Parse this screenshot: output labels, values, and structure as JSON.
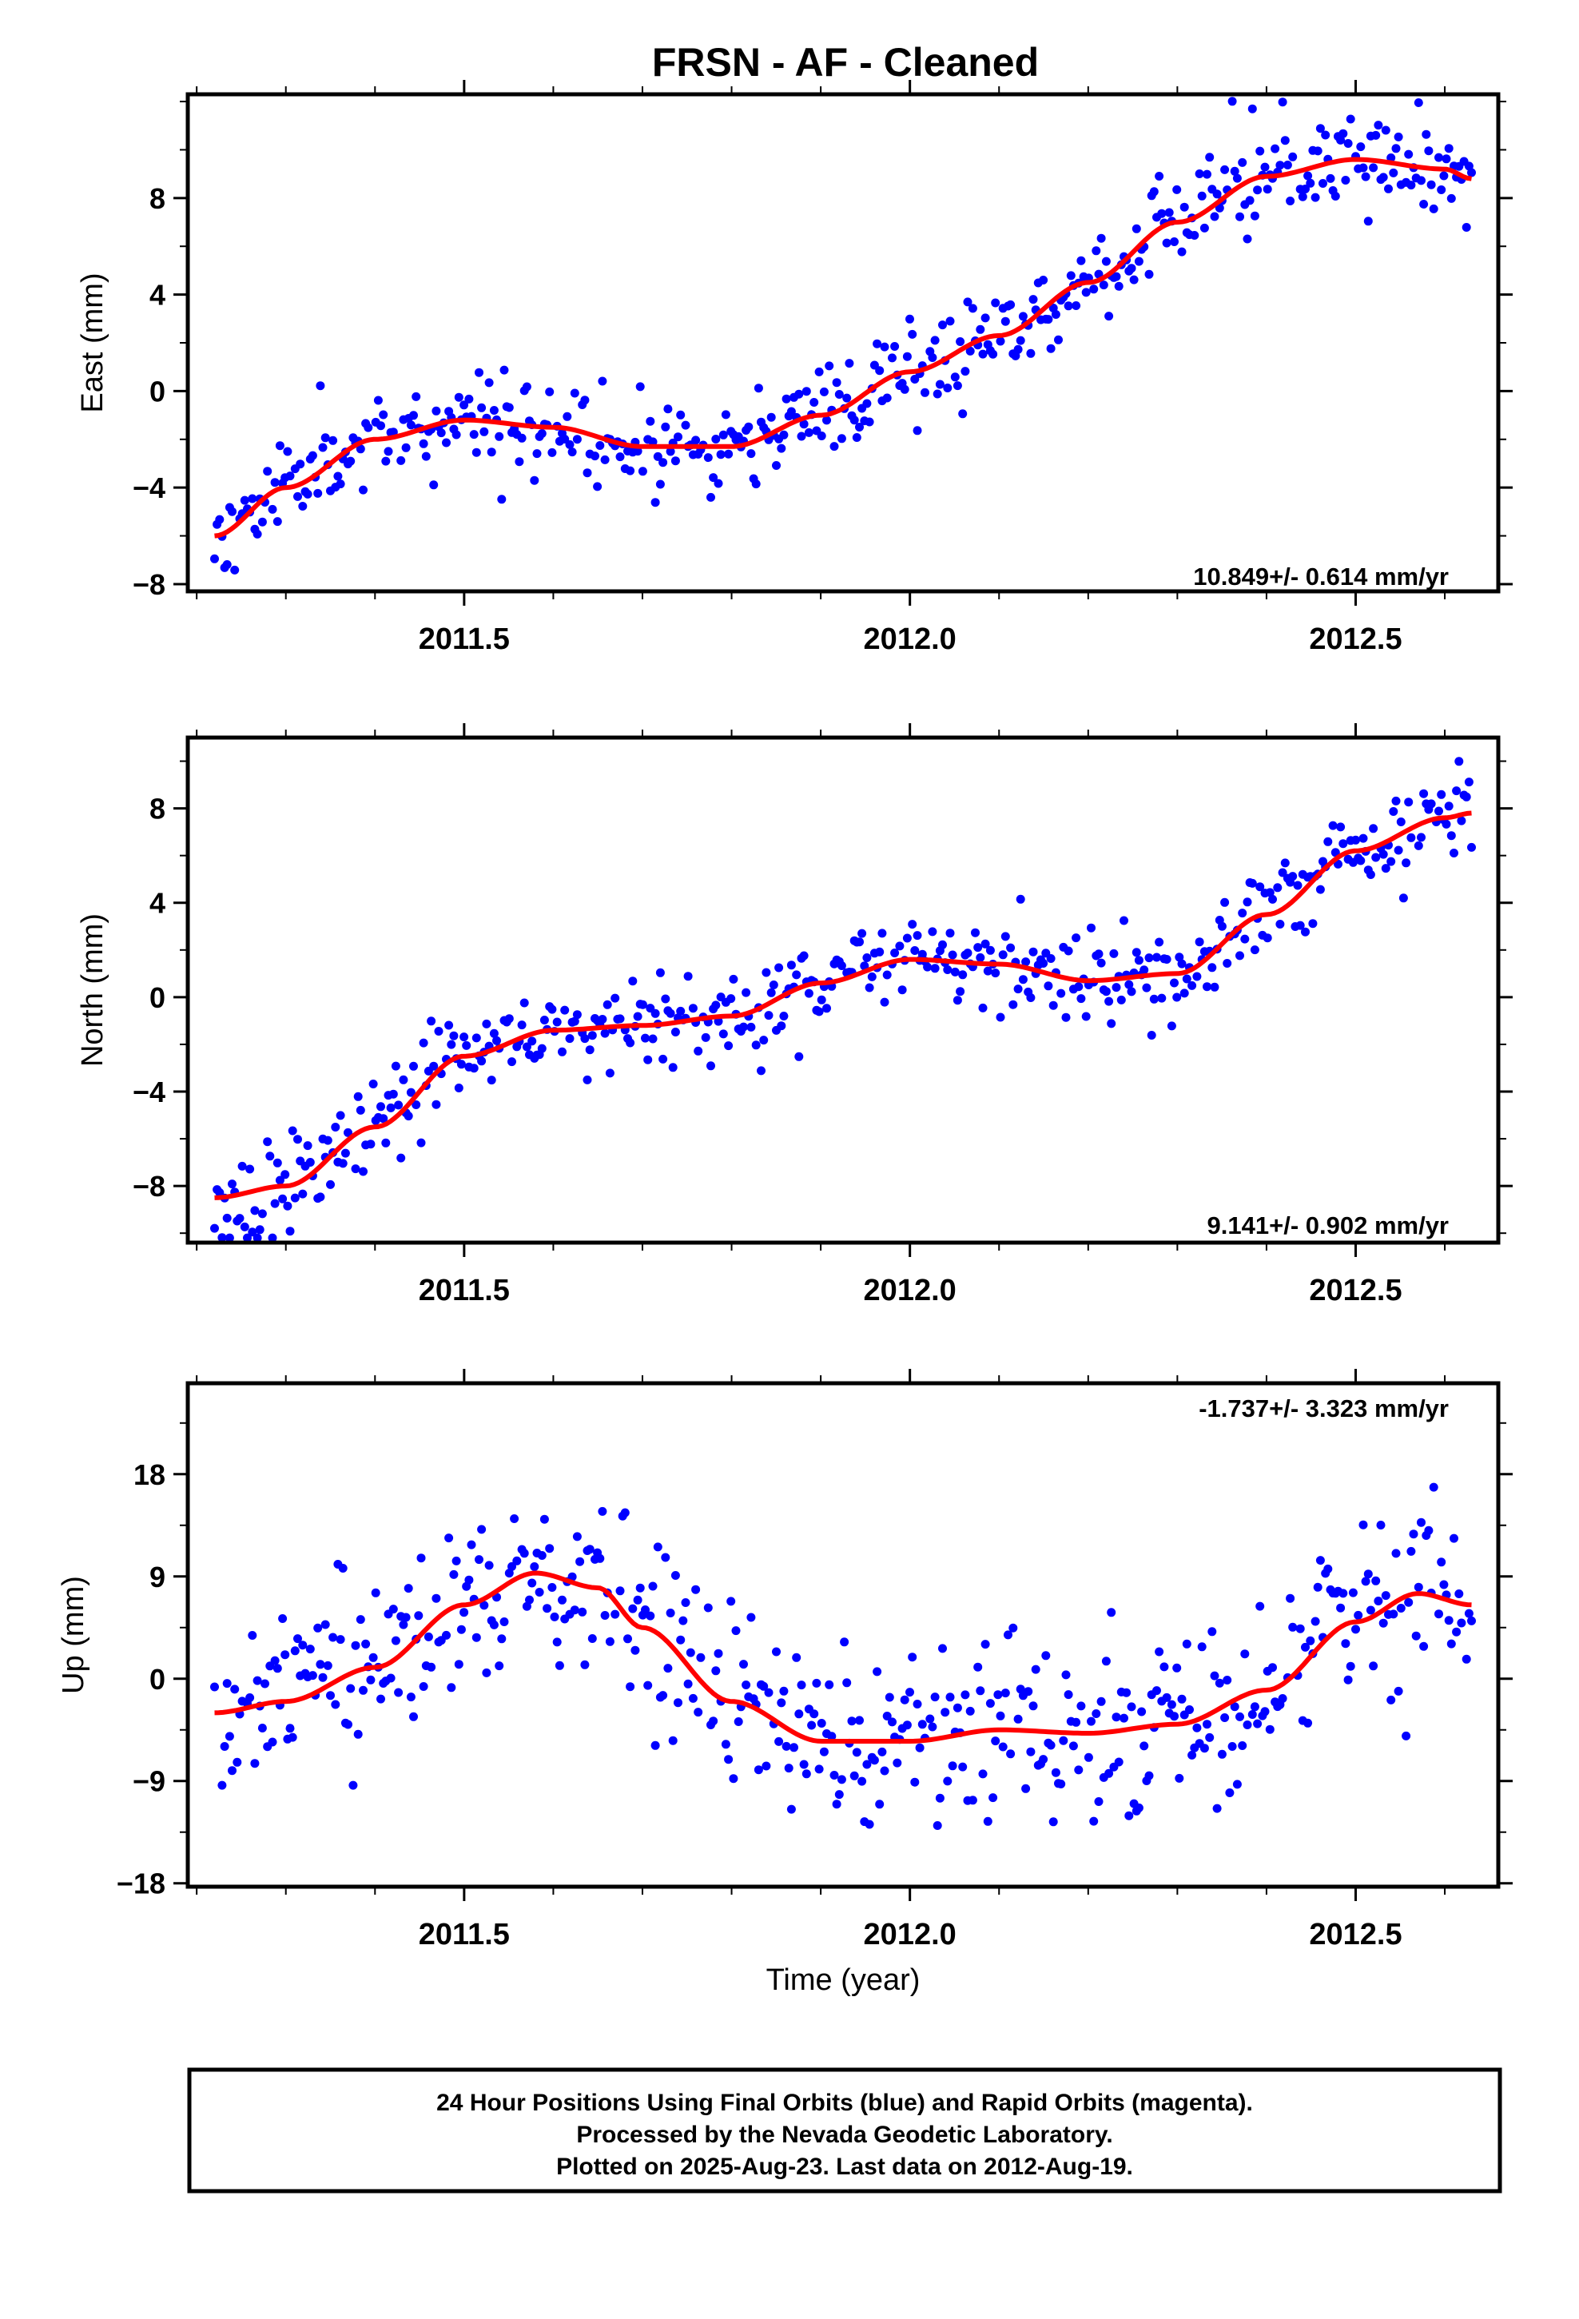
{
  "title": "FRSN  - AF - Cleaned",
  "chart_data": [
    {
      "type": "scatter",
      "ylabel": "East (mm)",
      "xlim": [
        2011.19,
        2012.66
      ],
      "ylim": [
        -8.3,
        12.3
      ],
      "xticks": [
        2011.5,
        2012.0,
        2012.5
      ],
      "xtick_labels": [
        "2011.5",
        "2012.0",
        "2012.5"
      ],
      "yticks": [
        -8,
        -4,
        0,
        4,
        8
      ],
      "ytick_labels": [
        "−8",
        "−4",
        "0",
        "4",
        "8"
      ],
      "rate_label": "10.849+/- 0.614 mm/yr",
      "series": [
        {
          "color": "#0000ff",
          "x_start": 2011.22,
          "x_end": 2012.63,
          "n": 500,
          "noise": 1.0,
          "seed": 11
        },
        {
          "color": "#ff0000",
          "type": "line",
          "x": [
            2011.22,
            2011.3,
            2011.4,
            2011.5,
            2011.6,
            2011.7,
            2011.8,
            2011.9,
            2012.0,
            2012.1,
            2012.2,
            2012.3,
            2012.4,
            2012.5,
            2012.6,
            2012.63
          ],
          "y": [
            -6.0,
            -4.0,
            -2.0,
            -1.2,
            -1.5,
            -2.3,
            -2.3,
            -1.0,
            0.8,
            2.3,
            4.5,
            7.0,
            8.9,
            9.6,
            9.2,
            8.8
          ]
        }
      ]
    },
    {
      "type": "scatter",
      "ylabel": "North (mm)",
      "xlim": [
        2011.19,
        2012.66
      ],
      "ylim": [
        -10.4,
        11.0
      ],
      "xticks": [
        2011.5,
        2012.0,
        2012.5
      ],
      "xtick_labels": [
        "2011.5",
        "2012.0",
        "2012.5"
      ],
      "yticks": [
        -8,
        -4,
        0,
        4,
        8
      ],
      "ytick_labels": [
        "−8",
        "−4",
        "0",
        "4",
        "8"
      ],
      "rate_label": "9.141+/- 0.902 mm/yr",
      "series": [
        {
          "color": "#0000ff",
          "x_start": 2011.22,
          "x_end": 2012.63,
          "n": 500,
          "noise": 1.0,
          "seed": 23
        },
        {
          "color": "#ff0000",
          "type": "line",
          "x": [
            2011.22,
            2011.3,
            2011.4,
            2011.5,
            2011.6,
            2011.7,
            2011.8,
            2011.9,
            2012.0,
            2012.1,
            2012.2,
            2012.3,
            2012.4,
            2012.5,
            2012.6,
            2012.63
          ],
          "y": [
            -8.5,
            -8.0,
            -5.5,
            -2.5,
            -1.4,
            -1.2,
            -0.8,
            0.6,
            1.6,
            1.4,
            0.7,
            1.0,
            3.5,
            6.2,
            7.6,
            7.8
          ]
        }
      ]
    },
    {
      "type": "scatter",
      "ylabel": "Up (mm)",
      "xlim": [
        2011.19,
        2012.66
      ],
      "ylim": [
        -18.3,
        26.0
      ],
      "xticks": [
        2011.5,
        2012.0,
        2012.5
      ],
      "xtick_labels": [
        "2011.5",
        "2012.0",
        "2012.5"
      ],
      "yticks": [
        -18,
        -9,
        0,
        9,
        18
      ],
      "ytick_labels": [
        "−18",
        "−9",
        "0",
        "9",
        "18"
      ],
      "rate_label": "-1.737+/- 3.323 mm/yr",
      "xlabel": "Time (year)",
      "series": [
        {
          "color": "#0000ff",
          "x_start": 2011.22,
          "x_end": 2012.63,
          "n": 500,
          "noise": 4.2,
          "seed": 37
        },
        {
          "color": "#ff0000",
          "type": "line",
          "x": [
            2011.22,
            2011.3,
            2011.4,
            2011.5,
            2011.58,
            2011.65,
            2011.7,
            2011.8,
            2011.9,
            2012.0,
            2012.1,
            2012.2,
            2012.3,
            2012.4,
            2012.5,
            2012.57,
            2012.63
          ],
          "y": [
            -3.0,
            -2.0,
            1.0,
            6.5,
            9.3,
            8.0,
            4.5,
            -2.0,
            -5.5,
            -5.5,
            -4.5,
            -4.8,
            -4.0,
            -1.0,
            5.0,
            7.5,
            6.5
          ]
        }
      ]
    }
  ],
  "footer": {
    "line1": "24 Hour Positions Using Final Orbits (blue) and Rapid Orbits (magenta).",
    "line2": "Processed by the Nevada Geodetic Laboratory.",
    "line3": "Plotted on 2025-Aug-23. Last data on 2012-Aug-19."
  }
}
